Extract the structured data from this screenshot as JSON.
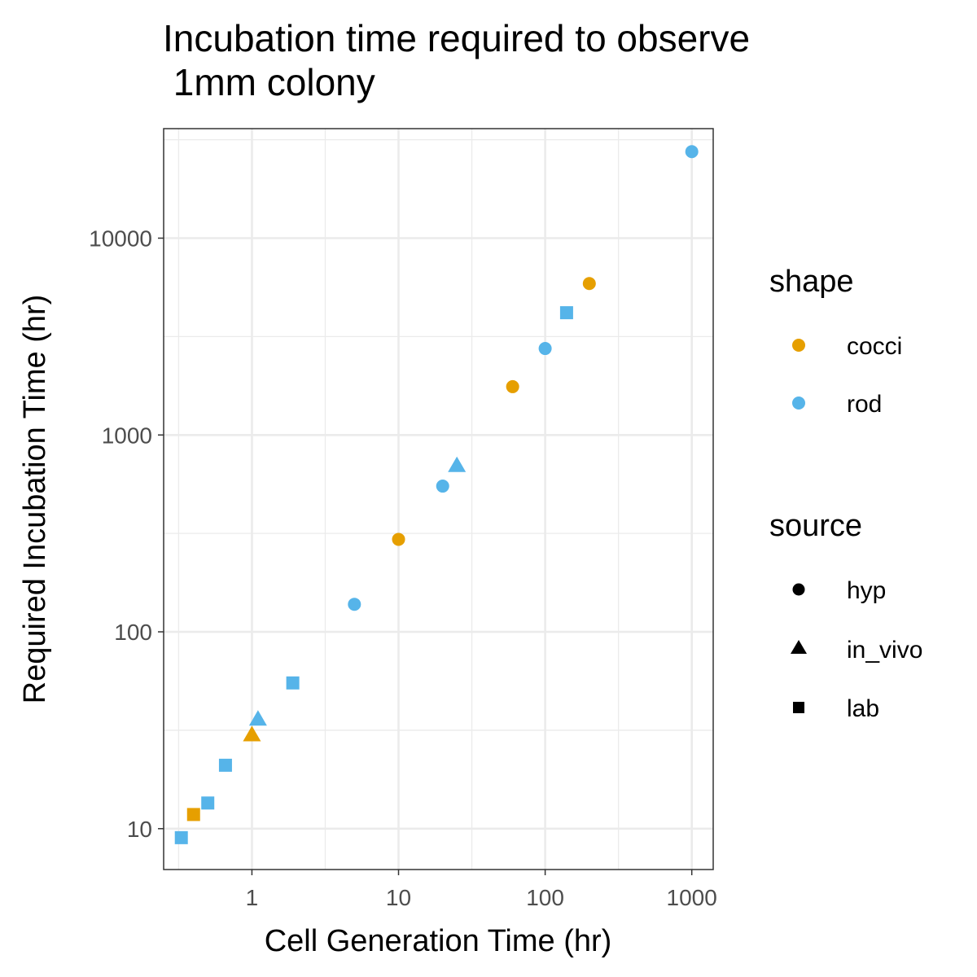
{
  "chart_data": {
    "type": "scatter",
    "title_lines": [
      "Incubation time required to observe",
      " 1mm colony"
    ],
    "xlabel": "Cell Generation Time (hr)",
    "ylabel": "Required Incubation Time (hr)",
    "x_scale": "log10",
    "y_scale": "log10",
    "xlim": [
      0.25,
      1400
    ],
    "ylim": [
      6.2,
      36000
    ],
    "x_ticks": [
      1,
      10,
      100,
      1000
    ],
    "x_tick_labels": [
      "1",
      "10",
      "100",
      "1000"
    ],
    "y_ticks": [
      10,
      100,
      1000,
      10000
    ],
    "y_tick_labels": [
      "10",
      "100",
      "1000",
      "10000"
    ],
    "grid": true,
    "legend_position": "right",
    "colors": {
      "cocci": "#E69F00",
      "rod": "#56B4E9"
    },
    "legends": {
      "shape": {
        "title": "shape",
        "items": [
          {
            "label": "cocci",
            "color": "#E69F00"
          },
          {
            "label": "rod",
            "color": "#56B4E9"
          }
        ]
      },
      "source": {
        "title": "source",
        "items": [
          {
            "label": "hyp",
            "symbol": "circle"
          },
          {
            "label": "in_vivo",
            "symbol": "triangle"
          },
          {
            "label": "lab",
            "symbol": "square"
          }
        ]
      }
    },
    "points": [
      {
        "x": 0.33,
        "y": 9,
        "shape": "rod",
        "source": "lab"
      },
      {
        "x": 0.4,
        "y": 11.8,
        "shape": "cocci",
        "source": "lab"
      },
      {
        "x": 0.5,
        "y": 13.5,
        "shape": "rod",
        "source": "lab"
      },
      {
        "x": 0.66,
        "y": 21,
        "shape": "rod",
        "source": "lab"
      },
      {
        "x": 1.0,
        "y": 30,
        "shape": "cocci",
        "source": "in_vivo"
      },
      {
        "x": 1.1,
        "y": 36,
        "shape": "rod",
        "source": "in_vivo"
      },
      {
        "x": 1.9,
        "y": 55,
        "shape": "rod",
        "source": "lab"
      },
      {
        "x": 5,
        "y": 138,
        "shape": "rod",
        "source": "hyp"
      },
      {
        "x": 10,
        "y": 295,
        "shape": "cocci",
        "source": "hyp"
      },
      {
        "x": 20,
        "y": 550,
        "shape": "rod",
        "source": "hyp"
      },
      {
        "x": 25,
        "y": 700,
        "shape": "rod",
        "source": "in_vivo"
      },
      {
        "x": 60,
        "y": 1760,
        "shape": "cocci",
        "source": "hyp"
      },
      {
        "x": 100,
        "y": 2750,
        "shape": "rod",
        "source": "hyp"
      },
      {
        "x": 140,
        "y": 4180,
        "shape": "rod",
        "source": "lab"
      },
      {
        "x": 200,
        "y": 5880,
        "shape": "cocci",
        "source": "hyp"
      },
      {
        "x": 1000,
        "y": 27500,
        "shape": "rod",
        "source": "hyp"
      }
    ]
  }
}
